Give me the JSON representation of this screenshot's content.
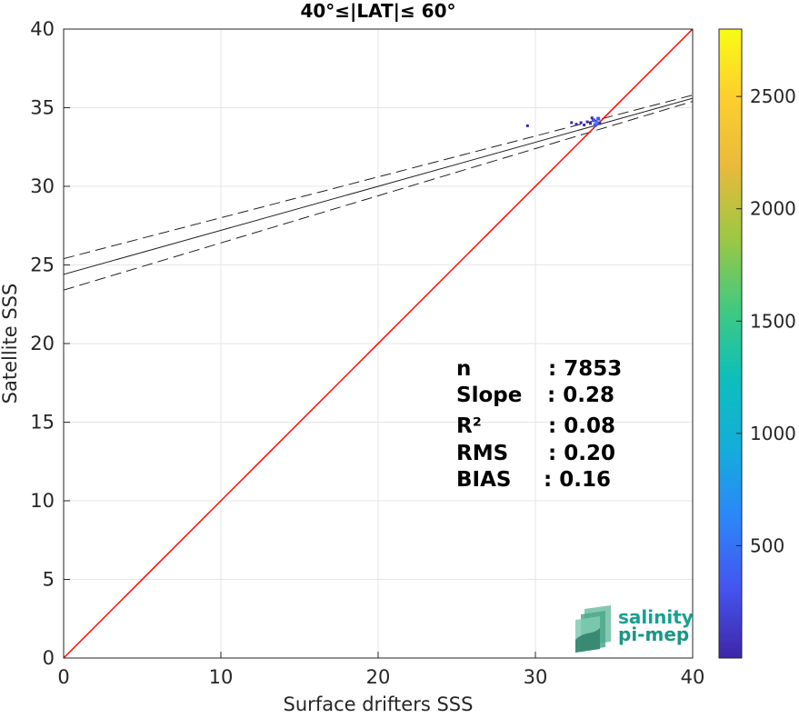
{
  "chart_data": {
    "type": "scatter",
    "title": "40°≤|LAT|≤ 60°",
    "xlabel": "Surface drifters SSS",
    "ylabel": "Satellite SSS",
    "xlim": [
      0,
      40
    ],
    "ylim": [
      0,
      40
    ],
    "xticks": [
      0,
      10,
      20,
      30,
      40
    ],
    "yticks": [
      0,
      5,
      10,
      15,
      20,
      25,
      30,
      35,
      40
    ],
    "grid": true,
    "one_to_one_line": {
      "color": "#ff0000",
      "points": [
        [
          0,
          0
        ],
        [
          40,
          40
        ]
      ]
    },
    "fit_line": {
      "intercept": 24.4,
      "slope": 0.28
    },
    "fit_bounds": [
      {
        "intercept": 25.4,
        "slope": 0.26
      },
      {
        "intercept": 23.4,
        "slope": 0.3
      }
    ],
    "density_points": [
      {
        "x": 29.5,
        "y": 33.85,
        "count": 30
      },
      {
        "x": 32.3,
        "y": 34.05,
        "count": 60
      },
      {
        "x": 32.6,
        "y": 33.95,
        "count": 120
      },
      {
        "x": 32.9,
        "y": 34.05,
        "count": 150
      },
      {
        "x": 33.1,
        "y": 33.9,
        "count": 180
      },
      {
        "x": 33.3,
        "y": 34.1,
        "count": 220
      },
      {
        "x": 33.5,
        "y": 34.0,
        "count": 300
      },
      {
        "x": 33.7,
        "y": 34.2,
        "count": 400
      },
      {
        "x": 33.8,
        "y": 33.9,
        "count": 500
      },
      {
        "x": 33.9,
        "y": 34.05,
        "count": 650
      },
      {
        "x": 34.0,
        "y": 34.3,
        "count": 350
      },
      {
        "x": 34.1,
        "y": 34.0,
        "count": 250
      },
      {
        "x": 33.6,
        "y": 34.35,
        "count": 160
      }
    ],
    "colorbar": {
      "ticks": [
        500,
        1000,
        1500,
        2000,
        2500
      ],
      "range": [
        0,
        2800
      ],
      "colors": [
        "#3e26a8",
        "#4554ef",
        "#2c86f8",
        "#14adda",
        "#0dbfbb",
        "#41c980",
        "#9cc843",
        "#e7ba3c",
        "#fcce2e",
        "#f9fb15"
      ]
    },
    "stats": [
      {
        "label": "n",
        "value": ": 7853"
      },
      {
        "label": "Slope",
        "value": ": 0.28"
      },
      {
        "label": "R²",
        "value": ": 0.08"
      },
      {
        "label": "RMS",
        "value": ": 0.20"
      },
      {
        "label": "BIAS",
        "value": ": 0.16"
      }
    ]
  },
  "logo": {
    "line1": "salinity",
    "line2": "pi-mep"
  }
}
